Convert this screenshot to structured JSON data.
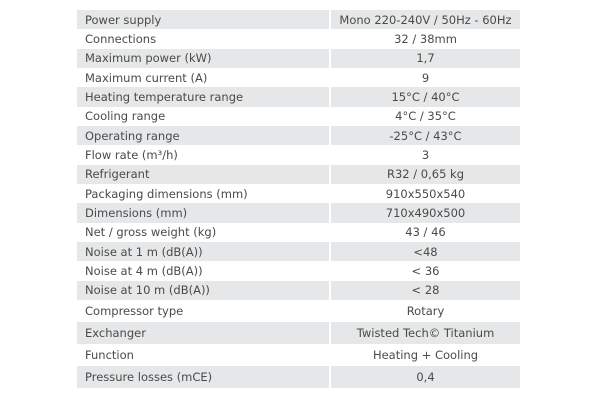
{
  "table": {
    "rows": [
      [
        "Power supply",
        "Mono 220-240V / 50Hz - 60Hz"
      ],
      [
        "Connections",
        "32 / 38mm"
      ],
      [
        "Maximum power (kW)",
        "1,7"
      ],
      [
        "Maximum current (A)",
        "9"
      ],
      [
        "Heating temperature range",
        "15°C / 40°C"
      ],
      [
        "Cooling range",
        "4°C / 35°C"
      ],
      [
        "Operating range",
        "-25°C / 43°C"
      ],
      [
        "Flow rate (m³/h)",
        "3"
      ],
      [
        "Refrigerant",
        "R32 / 0,65 kg"
      ],
      [
        "Packaging dimensions (mm)",
        "910x550x540"
      ],
      [
        "Dimensions (mm)",
        "710x490x500"
      ],
      [
        "Net / gross weight (kg)",
        "43 / 46"
      ],
      [
        "Noise at 1 m (dB(A))",
        "<48"
      ],
      [
        "Noise at 4 m (dB(A))",
        "< 36"
      ],
      [
        "Noise at 10 m (dB(A))",
        "< 28"
      ],
      [
        "Compressor type",
        "Rotary"
      ],
      [
        "Exchanger",
        "Twisted Tech© Titanium"
      ],
      [
        "Function",
        "Heating + Cooling"
      ],
      [
        "Pressure losses (mCE)",
        "0,4"
      ]
    ]
  }
}
